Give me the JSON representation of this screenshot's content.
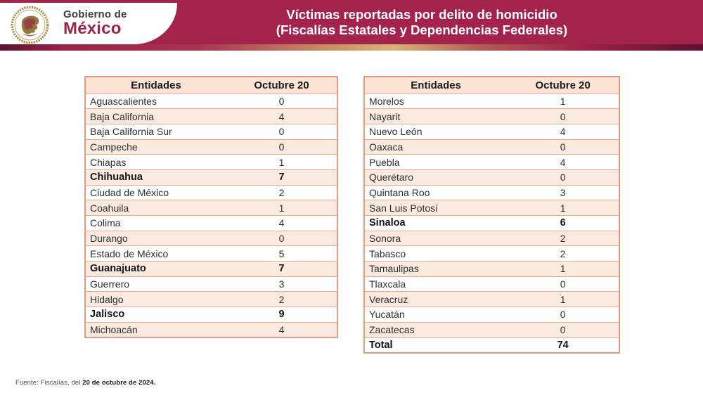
{
  "header": {
    "logo": {
      "line1": "Gobierno de",
      "line2": "México",
      "seal_icon": "mexico-coat-of-arms"
    },
    "title_line1": "Víctimas reportadas por delito de homicidio",
    "title_line2": "(Fiscalías Estatales y Dependencias Federales)"
  },
  "colors": {
    "banner_maroon": "#A3234D",
    "brand_maroon": "#9D2449",
    "gradient_gold": "#D7B478",
    "gradient_dark": "#5C1230",
    "table_border": "#EDA88A",
    "row_peach": "#FBEAE0",
    "header_peach": "#FBE4D6"
  },
  "tables": [
    {
      "headers": [
        "Entidades",
        "Octubre 20"
      ],
      "rows": [
        {
          "entity": "Aguascalientes",
          "value": "0",
          "bold": false
        },
        {
          "entity": "Baja California",
          "value": "4",
          "bold": false
        },
        {
          "entity": "Baja California Sur",
          "value": "0",
          "bold": false
        },
        {
          "entity": "Campeche",
          "value": "0",
          "bold": false
        },
        {
          "entity": "Chiapas",
          "value": "1",
          "bold": false
        },
        {
          "entity": "Chihuahua",
          "value": "7",
          "bold": true
        },
        {
          "entity": "Ciudad de México",
          "value": "2",
          "bold": false
        },
        {
          "entity": "Coahuila",
          "value": "1",
          "bold": false
        },
        {
          "entity": "Colima",
          "value": "4",
          "bold": false
        },
        {
          "entity": "Durango",
          "value": "0",
          "bold": false
        },
        {
          "entity": "Estado de México",
          "value": "5",
          "bold": false
        },
        {
          "entity": "Guanajuato",
          "value": "7",
          "bold": true
        },
        {
          "entity": "Guerrero",
          "value": "3",
          "bold": false
        },
        {
          "entity": "Hidalgo",
          "value": "2",
          "bold": false
        },
        {
          "entity": "Jalisco",
          "value": "9",
          "bold": true
        },
        {
          "entity": "Michoacán",
          "value": "4",
          "bold": false
        }
      ]
    },
    {
      "headers": [
        "Entidades",
        "Octubre 20"
      ],
      "rows": [
        {
          "entity": "Morelos",
          "value": "1",
          "bold": false
        },
        {
          "entity": "Nayarit",
          "value": "0",
          "bold": false
        },
        {
          "entity": "Nuevo León",
          "value": "4",
          "bold": false
        },
        {
          "entity": "Oaxaca",
          "value": "0",
          "bold": false
        },
        {
          "entity": "Puebla",
          "value": "4",
          "bold": false
        },
        {
          "entity": "Querétaro",
          "value": "0",
          "bold": false
        },
        {
          "entity": "Quintana Roo",
          "value": "3",
          "bold": false
        },
        {
          "entity": "San Luis Potosí",
          "value": "1",
          "bold": false
        },
        {
          "entity": "Sinaloa",
          "value": "6",
          "bold": true
        },
        {
          "entity": "Sonora",
          "value": "2",
          "bold": false
        },
        {
          "entity": "Tabasco",
          "value": "2",
          "bold": false
        },
        {
          "entity": "Tamaulipas",
          "value": "1",
          "bold": false
        },
        {
          "entity": "Tlaxcala",
          "value": "0",
          "bold": false
        },
        {
          "entity": "Veracruz",
          "value": "1",
          "bold": false
        },
        {
          "entity": "Yucatán",
          "value": "0",
          "bold": false
        },
        {
          "entity": "Zacatecas",
          "value": "0",
          "bold": false
        },
        {
          "entity": "Total",
          "value": "74",
          "bold": true
        }
      ]
    }
  ],
  "footer": {
    "prefix": "Fuente: Fiscalías, del ",
    "date_bold": "20 de octubre de 2024."
  }
}
